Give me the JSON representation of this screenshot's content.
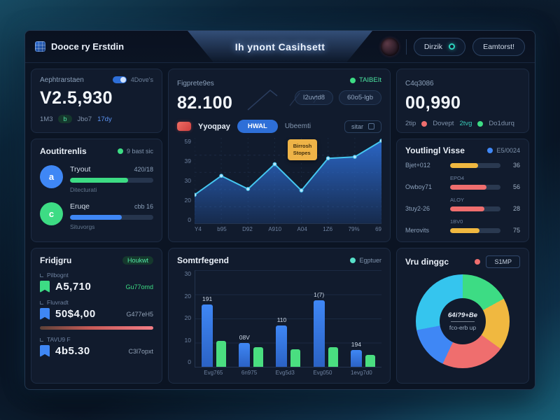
{
  "header": {
    "brand": "Dooce ry Erstdin",
    "title": "Ih ynont Casihsett",
    "menu_label": "Dirzik",
    "secondary_label": "Eamtorst!"
  },
  "colors": {
    "accent_blue": "#3f87f5",
    "accent_cyan": "#45c6f0",
    "accent_green": "#3ddc84",
    "accent_red": "#ef6e6e",
    "accent_yellow": "#f0b840"
  },
  "stat_left": {
    "label": "Aephtrarstaen",
    "toggle_label": "4Dove's",
    "value": "V2.5,930",
    "meta_a": "1M3",
    "meta_pill": "b",
    "meta_b": "Jbo7",
    "meta_c": "17dy"
  },
  "main_card": {
    "label": "Figprete9es",
    "value": "82.100",
    "badge": "TAIBEIt",
    "pill_a": "I2uvtd8",
    "pill_b": "60o5-lgb",
    "filter_name": "Yyoqpay",
    "filter_active": "HWAL",
    "filter_muted": "Ubeemti",
    "filter_box": "sitar",
    "filter_box_icon": "a"
  },
  "stat_right": {
    "label": "C4q3086",
    "value": "00,990",
    "legend": [
      {
        "prefix": "2tip",
        "label": "Dovept",
        "color": "#ef6e6e"
      },
      {
        "prefix": "2tvg",
        "label": "Do1durq",
        "color": "#3ddc84"
      }
    ]
  },
  "progress_card": {
    "title": "Aoutitrenlis",
    "badge": "9 bast sic",
    "items": [
      {
        "avatar": "a",
        "avatar_color": "#3f87f5",
        "name": "Tryout",
        "value": "420/18",
        "bar_color": "#3ddc84",
        "pct": 70,
        "sub": "Ditecturati"
      },
      {
        "avatar": "c",
        "avatar_color": "#3ddc84",
        "name": "Eruqe",
        "value": "cbb 16",
        "bar_color": "#3f87f5",
        "pct": 62,
        "sub": "Situvorgs"
      }
    ]
  },
  "ranking_card": {
    "title": "Youtlingl Visse",
    "badge": "E5/0024",
    "rows": [
      {
        "label": "Bjet+012",
        "tag": "",
        "value": "36",
        "color": "#f0b840",
        "pct": 55
      },
      {
        "label": "Owboy71",
        "tag": "EPO4",
        "value": "56",
        "color": "#ef6e6e",
        "pct": 72
      },
      {
        "label": "3tuy2-26",
        "tag": "ALOY",
        "value": "28",
        "color": "#ef6e6e",
        "pct": 68
      },
      {
        "label": "Merovits",
        "tag": "1BV0",
        "value": "75",
        "color": "#f0b840",
        "pct": 58
      }
    ]
  },
  "list_card": {
    "title": "Fridjgru",
    "badge": "Houkwt",
    "items": [
      {
        "tag": "Pilbognt",
        "value": "A5,710",
        "note": "Gu77omd",
        "note_color": "#3ddc84",
        "icon_color": "#3ddc84",
        "divider": false
      },
      {
        "tag": "Fluvradt",
        "value": "50$4,00",
        "note": "G477eH5",
        "note_color": "#93a3b8",
        "icon_color": "#3f87f5",
        "divider": true
      },
      {
        "tag": "TAVU9 F",
        "value": "4b5.30",
        "note": "C3l7opxt",
        "note_color": "#93a3b8",
        "icon_color": "#3f87f5",
        "divider": false
      }
    ]
  },
  "donut_card": {
    "title": "Vru dinggc",
    "button": "S1MP",
    "center_line1": "64i?9+Be",
    "center_line2": "fco-erb up"
  },
  "chart_data": [
    {
      "type": "area",
      "title": "Figprete9es",
      "x": [
        "Y4",
        "b95",
        "D92",
        "A910",
        "A04",
        "1Z6",
        "79%",
        "69"
      ],
      "values": [
        20,
        33,
        24,
        41,
        23,
        45,
        46,
        57
      ],
      "ylim": [
        0,
        59
      ],
      "yticks": [
        "0",
        "20",
        "30",
        "39",
        "59"
      ],
      "line_color": "#45c6f0",
      "fill_color": "#2e6fd8",
      "grid": true,
      "legend_position": "none",
      "annotation": {
        "lines": [
          "Birrosh",
          "Stopes"
        ],
        "point_index": 5,
        "bg": "#eeb347"
      }
    },
    {
      "type": "bar",
      "title": "Somtrfegend",
      "legend": [
        {
          "name": "Egptuer",
          "color": "#57e0c8"
        }
      ],
      "legend_position": "top-right",
      "categories": [
        "Evg765",
        "6n975",
        "Evg5d3",
        "Evg050",
        "1evg7d0"
      ],
      "series": [
        {
          "name": "primary",
          "color": "#3f87f5",
          "values": [
            22.5,
            8.6,
            15,
            24,
            6
          ]
        },
        {
          "name": "secondary",
          "color": "#4ade80",
          "values": [
            9.4,
            7,
            6.4,
            7,
            4.2
          ]
        }
      ],
      "bar_labels": [
        "191",
        "08V",
        "110",
        "1(7)",
        "194"
      ],
      "ylim": [
        0,
        30
      ],
      "yticks": [
        "0",
        "10",
        "20",
        "20",
        "30"
      ],
      "grid": true
    },
    {
      "type": "pie",
      "title": "Vru dinggc",
      "donut": true,
      "segments": [
        {
          "name": "green",
          "color": "#3ddc84",
          "pct": 17
        },
        {
          "name": "yellow",
          "color": "#f0b840",
          "pct": 18
        },
        {
          "name": "red",
          "color": "#ef6e6e",
          "pct": 22
        },
        {
          "name": "blue",
          "color": "#3f87f5",
          "pct": 15
        },
        {
          "name": "cyan",
          "color": "#35c5ee",
          "pct": 28
        }
      ]
    }
  ]
}
